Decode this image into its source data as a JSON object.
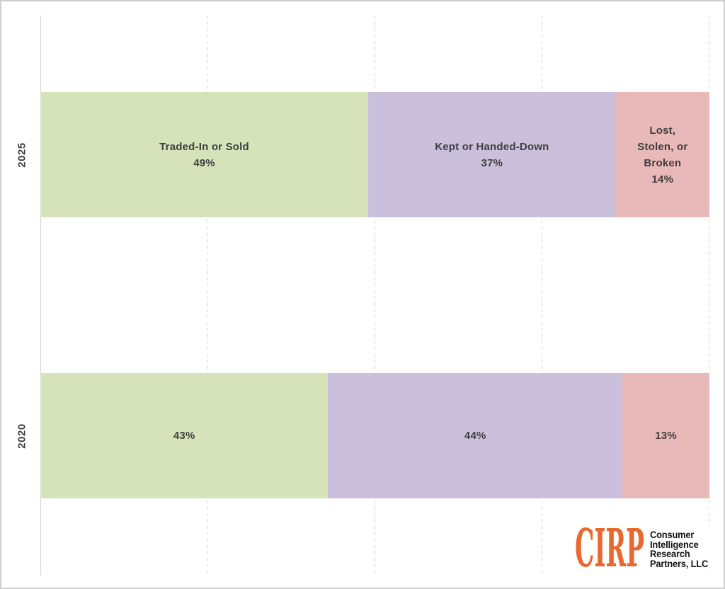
{
  "chart_data": {
    "type": "bar",
    "variant": "stacked-horizontal",
    "title": "",
    "categories": [
      "2025",
      "2020"
    ],
    "series": [
      {
        "name": "Traded-In or Sold",
        "values": [
          49,
          43
        ],
        "color": "#D6E3BA"
      },
      {
        "name": "Kept or Handed-Down",
        "values": [
          37,
          44
        ],
        "color": "#CBC0DB"
      },
      {
        "name": "Lost, Stolen, or Broken",
        "values": [
          14,
          13
        ],
        "color": "#E9B8B8"
      }
    ],
    "value_unit": "%",
    "xlim": [
      0,
      100
    ],
    "gridlines_pct": [
      25,
      50,
      75,
      100
    ],
    "grid_style": "dashed",
    "legend_position": "none",
    "segment_labels": [
      [
        [
          "Traded-In or Sold",
          "49%"
        ],
        [
          "Kept or Handed-Down",
          "37%"
        ],
        [
          "Lost,",
          "Stolen, or",
          "Broken",
          "14%"
        ]
      ],
      [
        [
          "43%"
        ],
        [
          "44%"
        ],
        [
          "13%"
        ]
      ]
    ]
  },
  "logo": {
    "acronym": "CIRP",
    "company_lines": [
      "Consumer",
      "Intelligence",
      "Research",
      "Partners, LLC"
    ],
    "acronym_color": "#E8682F",
    "text_color": "#151515"
  },
  "colors": {
    "background": "#FFFFFF",
    "frame_border": "#CFCFCF",
    "gridline": "#D6D6D6",
    "axis_line": "#D4D4D4",
    "label_text": "#3F3F3F"
  }
}
